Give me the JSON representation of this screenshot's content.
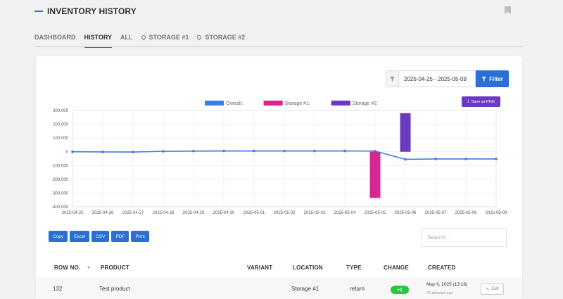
{
  "header": {
    "title": "INVENTORY HISTORY"
  },
  "tabs": [
    {
      "label": "DASHBOARD",
      "active": false,
      "icon": ""
    },
    {
      "label": "HISTORY",
      "active": true,
      "icon": ""
    },
    {
      "label": "ALL",
      "active": false,
      "icon": ""
    },
    {
      "label": "STORAGE #1",
      "active": false,
      "icon": "location-pin-icon"
    },
    {
      "label": "STORAGE #2",
      "active": false,
      "icon": "location-pin-icon"
    }
  ],
  "filter": {
    "date_range": "2025-04-25 - 2025-05-09",
    "button_label": "Filter"
  },
  "save_button_label": "Save as PNG",
  "colors": {
    "accent": "#2a6fd6",
    "overall": "#3a7fdd",
    "storage1": "#d6268f",
    "storage2": "#6a3bbf",
    "success": "#27c83c"
  },
  "chart_data": {
    "type": "line",
    "legend_position": "top-center",
    "grid": true,
    "x": [
      "2025-04-25",
      "2025-04-26",
      "2025-04-27",
      "2025-04-28",
      "2025-04-29",
      "2025-04-30",
      "2025-05-01",
      "2025-05-02",
      "2025-05-03",
      "2025-05-04",
      "2025-05-05",
      "2025-05-06",
      "2025-05-07",
      "2025-05-08",
      "2025-05-09"
    ],
    "ylim": [
      -400000,
      300000
    ],
    "yticks": [
      300000,
      200000,
      100000,
      0,
      -100000,
      -200000,
      -300000,
      -400000
    ],
    "ytick_labels": [
      "300,000",
      "200,000",
      "100,000",
      "0",
      "-100,000",
      "-200,000",
      "-300,000",
      "-400,000"
    ],
    "series": [
      {
        "name": "Overall:",
        "type": "line",
        "values": [
          0,
          -1000,
          -2000,
          3000,
          5000,
          6000,
          6000,
          6000,
          6000,
          6000,
          5000,
          -55000,
          -52000,
          -52000,
          -52000
        ]
      },
      {
        "name": "Storage #1:",
        "type": "bar",
        "values": [
          null,
          null,
          null,
          null,
          null,
          null,
          null,
          null,
          null,
          null,
          -335000,
          null,
          null,
          null,
          null
        ]
      },
      {
        "name": "Storage #2:",
        "type": "bar",
        "values": [
          null,
          null,
          null,
          null,
          null,
          null,
          null,
          null,
          null,
          null,
          null,
          280000,
          null,
          null,
          null
        ]
      }
    ]
  },
  "export_buttons": [
    "Copy",
    "Excel",
    "CSV",
    "PDF",
    "Print"
  ],
  "search": {
    "placeholder": "Search...",
    "value": ""
  },
  "table": {
    "columns": [
      "ROW NO.",
      "PRODUCT",
      "VARIANT",
      "LOCATION",
      "TYPE",
      "CHANGE",
      "CREATED"
    ],
    "rows": [
      {
        "row_no": "132",
        "product": "Test product",
        "variant": "",
        "location": "Storage #1",
        "type": "return",
        "change": "+1",
        "created_date": "May 9, 2025 (13:18)",
        "created_ago": "26 minutes ago",
        "action": "Edit"
      }
    ]
  }
}
